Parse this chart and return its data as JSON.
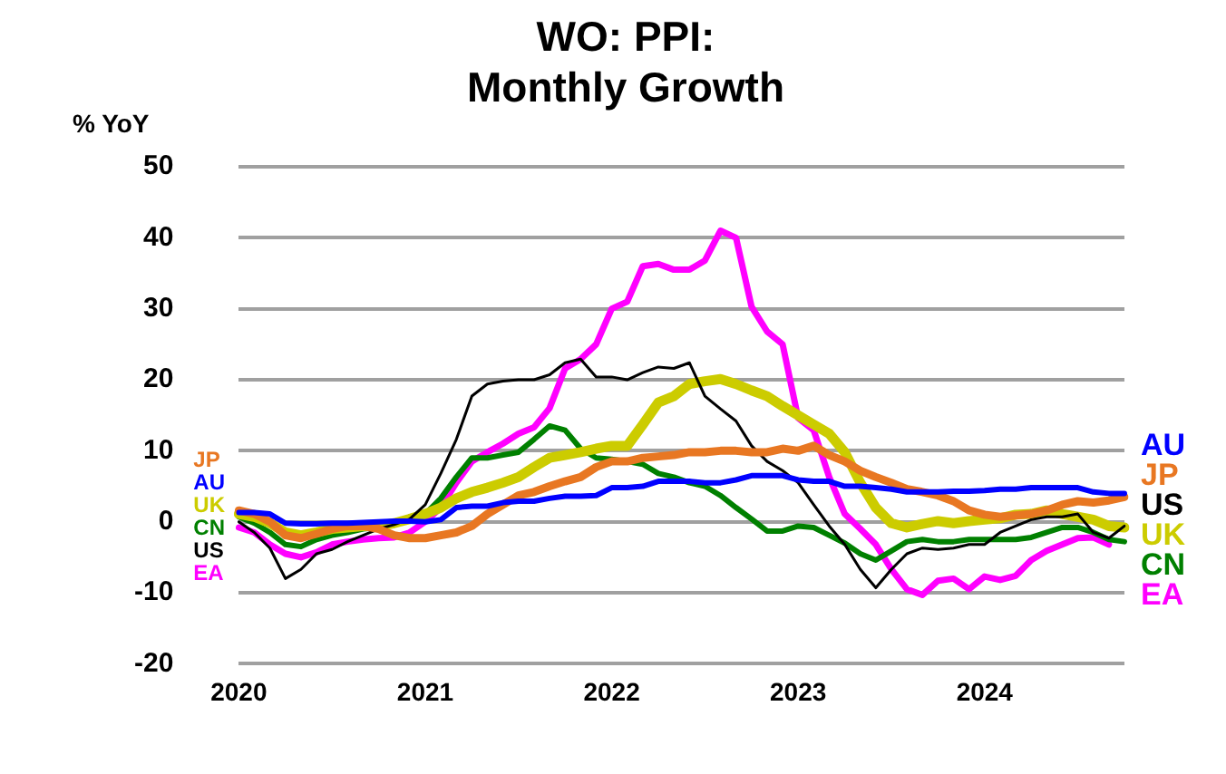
{
  "chart_data": {
    "type": "line",
    "title": "WO: PPI:\nMonthly Growth",
    "ylabel": "% YoY",
    "categories": [
      "2020",
      null,
      null,
      null,
      null,
      null,
      null,
      null,
      null,
      null,
      null,
      null,
      "2021",
      null,
      null,
      null,
      null,
      null,
      null,
      null,
      null,
      null,
      null,
      null,
      "2022",
      null,
      null,
      null,
      null,
      null,
      null,
      null,
      null,
      null,
      null,
      null,
      "2023",
      null,
      null,
      null,
      null,
      null,
      null,
      null,
      null,
      null,
      null,
      null,
      "2024",
      null,
      null,
      null,
      null,
      null,
      null,
      null,
      null,
      null
    ],
    "series": [
      {
        "name": "AU",
        "color": "#0000ff",
        "values": [
          1.3,
          1.3,
          1.1,
          -0.2,
          -0.3,
          -0.3,
          -0.2,
          -0.2,
          -0.1,
          0,
          0.1,
          0.1,
          0,
          0.3,
          2,
          2.2,
          2.2,
          2.7,
          2.9,
          2.9,
          3.3,
          3.6,
          3.6,
          3.7,
          4.8,
          4.8,
          5,
          5.7,
          5.7,
          5.7,
          5.5,
          5.5,
          5.9,
          6.5,
          6.5,
          6.5,
          5.9,
          5.7,
          5.7,
          5,
          5,
          4.8,
          4.6,
          4.2,
          4.2,
          4.2,
          4.3,
          4.3,
          4.4,
          4.6,
          4.6,
          4.8,
          4.8,
          4.8,
          4.8,
          4.2,
          4,
          4
        ]
      },
      {
        "name": "JP",
        "color": "#e87722",
        "values": [
          1.6,
          1.1,
          0,
          -1.9,
          -2.3,
          -1.7,
          -1,
          -0.6,
          -0.6,
          -1,
          -1.9,
          -2.3,
          -2.3,
          -1.9,
          -1.5,
          -0.6,
          1.1,
          2.4,
          3.7,
          4.2,
          5,
          5.7,
          6.3,
          7.7,
          8.5,
          8.5,
          9,
          9.2,
          9.4,
          9.8,
          9.8,
          10,
          10,
          9.8,
          9.8,
          10.3,
          10,
          10.7,
          9.4,
          8.5,
          7.2,
          6.3,
          5.5,
          4.6,
          4.2,
          3.7,
          2.9,
          1.6,
          1,
          0.7,
          0.9,
          1.1,
          1.6,
          2.4,
          2.9,
          2.7,
          3,
          3.5
        ]
      },
      {
        "name": "US",
        "color": "#000000",
        "values": [
          0,
          -1.5,
          -3.7,
          -8,
          -6.7,
          -4.5,
          -3.9,
          -2.8,
          -1.9,
          -1,
          -0.4,
          0.4,
          2.4,
          6.8,
          11.6,
          17.7,
          19.4,
          19.8,
          20,
          20,
          20.7,
          22.4,
          22.9,
          20.4,
          20.4,
          20,
          21,
          21.8,
          21.6,
          22.4,
          17.7,
          15.9,
          14.2,
          10.7,
          8.5,
          7.2,
          5.5,
          2.4,
          -0.6,
          -3.2,
          -6.7,
          -9.3,
          -6.7,
          -4.5,
          -3.7,
          -3.9,
          -3.7,
          -3.2,
          -3.2,
          -1.5,
          -0.6,
          0.3,
          0.7,
          0.7,
          1.1,
          -1.5,
          -2.3,
          -0.6
        ]
      },
      {
        "name": "UK",
        "color": "#cccc00",
        "values": [
          1.1,
          0.7,
          -0.2,
          -1.5,
          -1.9,
          -1.5,
          -1,
          -0.8,
          -0.6,
          -0.6,
          -0.2,
          0.4,
          1.1,
          2,
          3.3,
          4.2,
          4.8,
          5.5,
          6.3,
          7.7,
          9,
          9.4,
          9.8,
          10.3,
          10.7,
          10.7,
          13.7,
          16.8,
          17.7,
          19.4,
          19.8,
          20.1,
          19.4,
          18.5,
          17.7,
          16.3,
          15,
          13.7,
          12.4,
          9.8,
          5.5,
          2,
          -0.2,
          -0.8,
          -0.3,
          0.1,
          -0.2,
          0.1,
          0.3,
          0.5,
          1,
          1.1,
          1.6,
          1.1,
          0.7,
          0.3,
          -0.6,
          -0.8
        ]
      },
      {
        "name": "CN",
        "color": "#008000",
        "values": [
          0.7,
          -0.2,
          -1.5,
          -3.2,
          -3.5,
          -2.5,
          -1.9,
          -1.5,
          -1,
          -0.8,
          -0.2,
          0.7,
          1.1,
          3.3,
          6.3,
          9,
          9,
          9.4,
          9.8,
          11.6,
          13.5,
          12.9,
          10.3,
          9,
          8.8,
          8.5,
          8.1,
          6.8,
          6.3,
          5.5,
          5,
          3.7,
          2,
          0.4,
          -1.3,
          -1.3,
          -0.6,
          -0.8,
          -1.9,
          -3,
          -4.5,
          -5.4,
          -4.1,
          -2.8,
          -2.5,
          -2.8,
          -2.8,
          -2.5,
          -2.5,
          -2.5,
          -2.5,
          -2.2,
          -1.5,
          -0.8,
          -0.8,
          -1.5,
          -2.5,
          -2.8
        ]
      },
      {
        "name": "EA",
        "color": "#ff00ff",
        "values": [
          -0.8,
          -1.5,
          -3.2,
          -4.5,
          -5,
          -4.3,
          -3.2,
          -2.8,
          -2.5,
          -2.3,
          -2.2,
          -1.5,
          0,
          2,
          5.5,
          8.5,
          9.8,
          11,
          12.4,
          13.3,
          16,
          21.6,
          22.9,
          25,
          30,
          31,
          36,
          36.3,
          35.5,
          35.5,
          36.8,
          41,
          40,
          30.3,
          26.8,
          25,
          14.6,
          12.9,
          6.3,
          1.1,
          -1,
          -3.2,
          -6.7,
          -9.5,
          -10.3,
          -8.3,
          -8,
          -9.5,
          -7.7,
          -8.2,
          -7.6,
          -5.4,
          -4.1,
          -3.2,
          -2.3,
          -2.2,
          -3.2,
          null
        ]
      }
    ],
    "ylim": [
      -20,
      50
    ],
    "yticks": [
      -20,
      -10,
      0,
      10,
      20,
      30,
      40,
      50
    ],
    "grid": "y",
    "legend": false,
    "marker": "none",
    "line_style": "solid"
  }
}
